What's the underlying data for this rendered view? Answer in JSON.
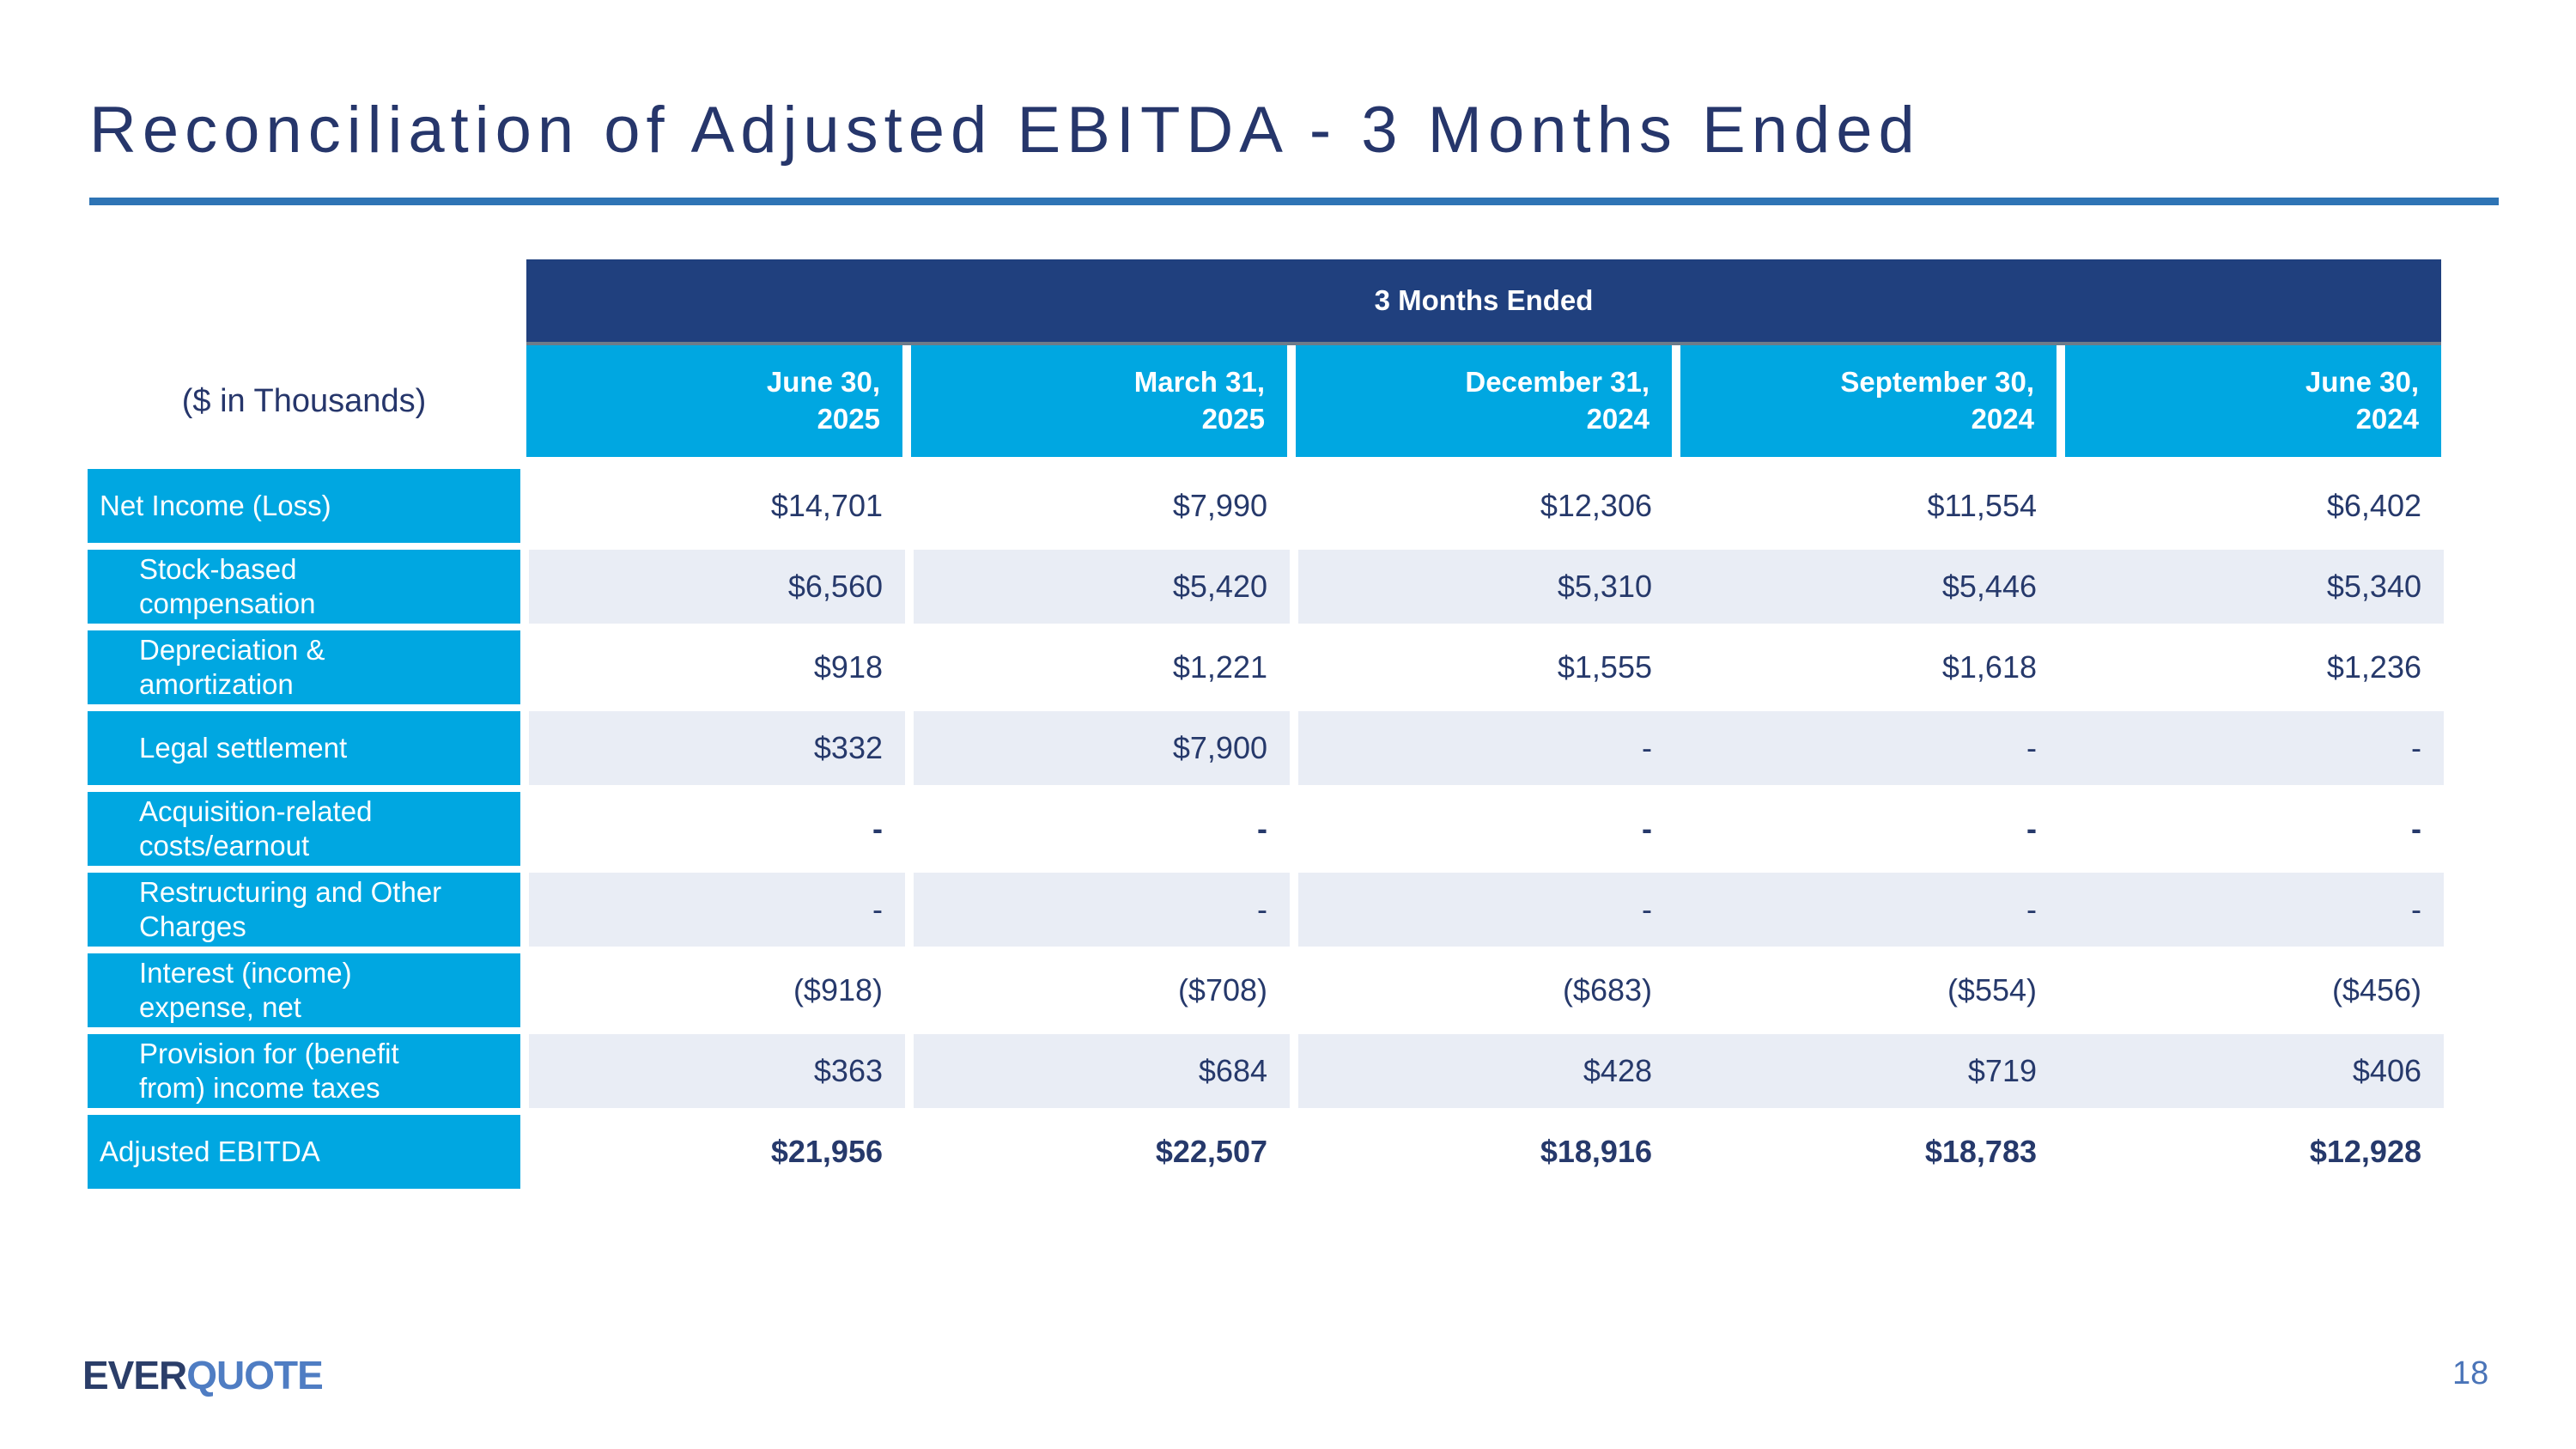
{
  "slide": {
    "title": "Reconciliation of Adjusted EBITDA - 3 Months Ended",
    "page_number": "18",
    "logo": {
      "part1": "EVER",
      "part2": "QUOTE"
    }
  },
  "table": {
    "units_label": "($ in Thousands)",
    "header_band": "3 Months Ended",
    "columns": [
      "June 30,\n2025",
      "March 31,\n2025",
      "December 31,\n2024",
      "September 30,\n2024",
      "June 30,\n2024"
    ],
    "rows": [
      {
        "label": "Net Income (Loss)",
        "indent": false,
        "shaded": false,
        "bold_values": false,
        "values": [
          "$14,701",
          "$7,990",
          "$12,306",
          "$11,554",
          "$6,402"
        ]
      },
      {
        "label": "Stock-based\ncompensation",
        "indent": true,
        "shaded": true,
        "bold_values": false,
        "values": [
          "$6,560",
          "$5,420",
          "$5,310",
          "$5,446",
          "$5,340"
        ]
      },
      {
        "label": "Depreciation &\namortization",
        "indent": true,
        "shaded": false,
        "bold_values": false,
        "values": [
          "$918",
          "$1,221",
          "$1,555",
          "$1,618",
          "$1,236"
        ]
      },
      {
        "label": "Legal settlement",
        "indent": true,
        "shaded": true,
        "bold_values": false,
        "values": [
          "$332",
          "$7,900",
          "-",
          "-",
          "-"
        ]
      },
      {
        "label": "Acquisition-related\ncosts/earnout",
        "indent": true,
        "shaded": false,
        "bold_values": true,
        "values": [
          "-",
          "-",
          "-",
          "-",
          "-"
        ]
      },
      {
        "label": "Restructuring and Other\nCharges",
        "indent": true,
        "shaded": true,
        "bold_values": false,
        "values": [
          "-",
          "-",
          "-",
          "-",
          "-"
        ]
      },
      {
        "label": "Interest (income)\nexpense, net",
        "indent": true,
        "shaded": false,
        "bold_values": false,
        "values": [
          "($918)",
          "($708)",
          "($683)",
          "($554)",
          "($456)"
        ]
      },
      {
        "label": "Provision for (benefit\nfrom) income taxes",
        "indent": true,
        "shaded": true,
        "bold_values": false,
        "values": [
          "$363",
          "$684",
          "$428",
          "$719",
          "$406"
        ]
      },
      {
        "label": "Adjusted EBITDA",
        "indent": false,
        "shaded": false,
        "bold_values": true,
        "values": [
          "$21,956",
          "$22,507",
          "$18,916",
          "$18,783",
          "$12,928"
        ]
      }
    ]
  },
  "colors": {
    "navy_band": "#20407E",
    "cyan": "#00A7E1",
    "light_row": "#E9EDF5",
    "text_navy": "#26396B",
    "title_navy": "#26366B",
    "rule_blue": "#2E74B5",
    "logo_navy": "#2B3E69",
    "logo_blue": "#4F7DC3",
    "page_blue": "#4A74B8"
  }
}
